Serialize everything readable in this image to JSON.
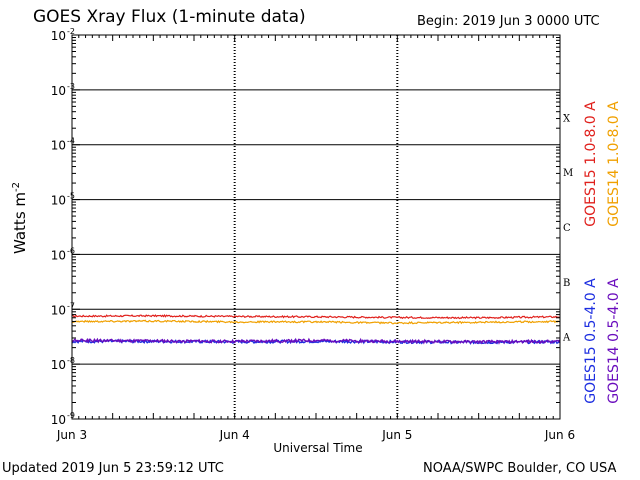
{
  "header": {
    "title": "GOES Xray Flux (1-minute data)",
    "begin": "Begin:  2019 Jun 3 0000 UTC"
  },
  "footer": {
    "updated": "Updated 2019 Jun  5 23:59:12 UTC",
    "credit": "NOAA/SWPC Boulder, CO USA"
  },
  "chart_data": {
    "type": "line",
    "xlabel": "Universal Time",
    "ylabel_base": "Watts m",
    "ylabel_exp": "-2",
    "yscale": "log",
    "ylim": [
      1e-09,
      0.01
    ],
    "y_ticks": [
      {
        "base": "10",
        "exp": "-2",
        "value": 0.01
      },
      {
        "base": "10",
        "exp": "-3",
        "value": 0.001
      },
      {
        "base": "10",
        "exp": "-4",
        "value": 0.0001
      },
      {
        "base": "10",
        "exp": "-5",
        "value": 1e-05
      },
      {
        "base": "10",
        "exp": "-6",
        "value": 1e-06
      },
      {
        "base": "10",
        "exp": "-7",
        "value": 1e-07
      },
      {
        "base": "10",
        "exp": "-8",
        "value": 1e-08
      },
      {
        "base": "10",
        "exp": "-9",
        "value": 1e-09
      }
    ],
    "x_ticks": [
      "Jun 3",
      "Jun 4",
      "Jun 5",
      "Jun 6"
    ],
    "xlim_days": [
      0,
      3
    ],
    "flare_classes": [
      {
        "label": "X",
        "value": 0.0001
      },
      {
        "label": "M",
        "value": 1e-05
      },
      {
        "label": "C",
        "value": 1e-06
      },
      {
        "label": "B",
        "value": 1e-07
      },
      {
        "label": "A",
        "value": 1e-08
      }
    ],
    "grid": true,
    "series": [
      {
        "name": "GOES15 1.0-8.0 A",
        "color": "#e0201c",
        "x": [
          0,
          0.5,
          1.0,
          1.5,
          2.0,
          2.5,
          3.0
        ],
        "y": [
          7.5e-08,
          7.6e-08,
          7.4e-08,
          7.3e-08,
          7.1e-08,
          7e-08,
          7.3e-08
        ]
      },
      {
        "name": "GOES14 1.0-8.0 A",
        "color": "#f0a000",
        "x": [
          0,
          0.5,
          1.0,
          1.5,
          2.0,
          2.5,
          3.0
        ],
        "y": [
          6e-08,
          6.1e-08,
          5.9e-08,
          5.9e-08,
          5.6e-08,
          5.8e-08,
          6e-08
        ]
      },
      {
        "name": "GOES15 0.5-4.0 A",
        "color": "#1c2ee0",
        "x": [
          0,
          0.5,
          1.0,
          1.5,
          2.0,
          2.5,
          3.0
        ],
        "y": [
          2.6e-08,
          2.6e-08,
          2.55e-08,
          2.6e-08,
          2.55e-08,
          2.5e-08,
          2.55e-08
        ]
      },
      {
        "name": "GOES14 0.5-4.0 A",
        "color": "#6a0dbd",
        "x": [
          0,
          0.5,
          1.0,
          1.5,
          2.0,
          2.5,
          3.0
        ],
        "y": [
          2.7e-08,
          2.65e-08,
          2.6e-08,
          2.7e-08,
          2.6e-08,
          2.55e-08,
          2.6e-08
        ]
      }
    ]
  }
}
